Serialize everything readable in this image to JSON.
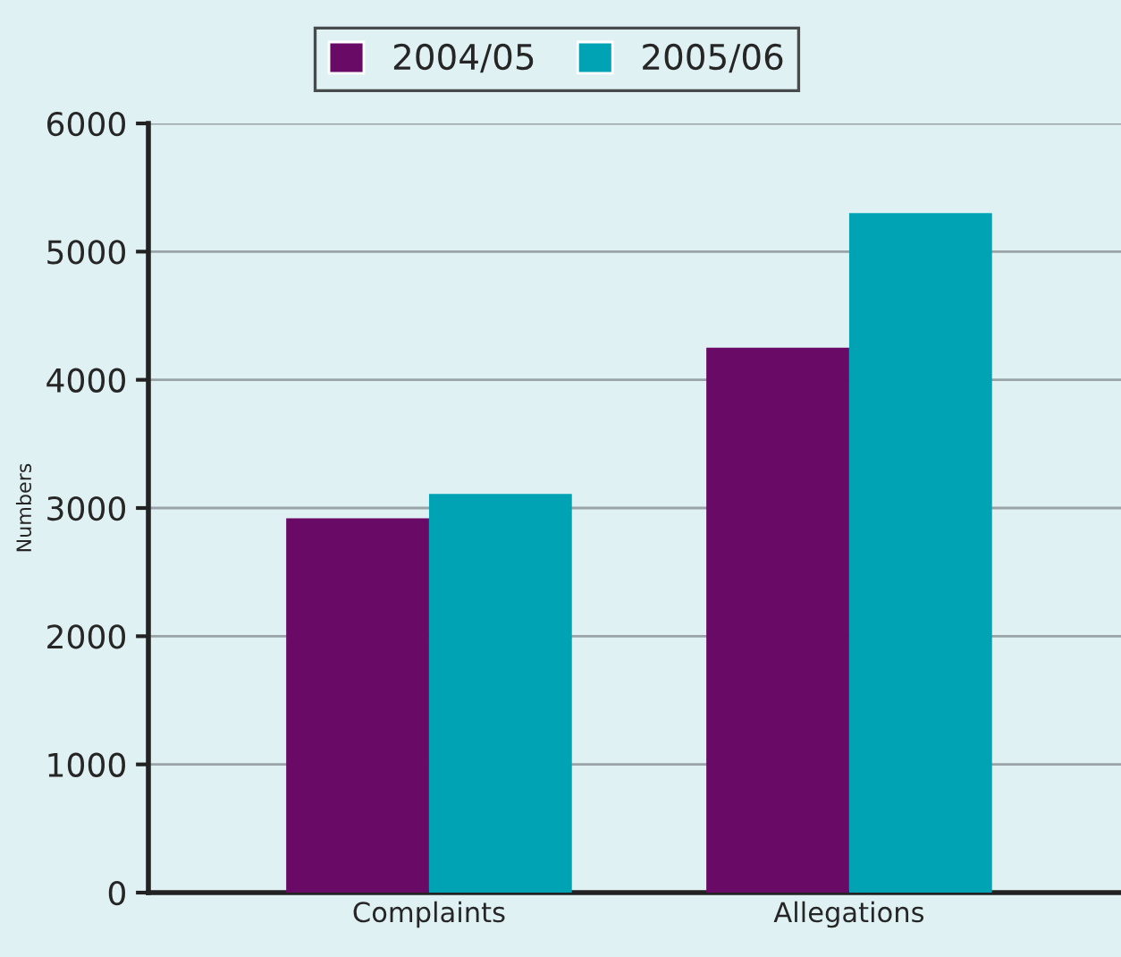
{
  "chart_data": {
    "type": "bar",
    "ylabel": "Numbers",
    "categories": [
      "Complaints",
      "Allegations"
    ],
    "series": [
      {
        "name": "2004/05",
        "color": "#690a67",
        "values": [
          2920,
          4250
        ]
      },
      {
        "name": "2005/06",
        "color": "#00a3b4",
        "values": [
          3110,
          5300
        ]
      }
    ],
    "ylim": [
      0,
      6000
    ],
    "yticks": [
      0,
      1000,
      2000,
      3000,
      4000,
      5000,
      6000
    ],
    "grid": "y",
    "legend": "top"
  }
}
